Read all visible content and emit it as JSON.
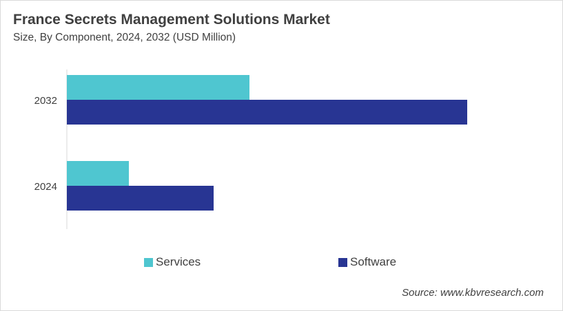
{
  "chart_data": {
    "type": "bar",
    "orientation": "horizontal",
    "title": "France Secrets Management Solutions Market",
    "subtitle": "Size, By Component, 2024, 2032 (USD Million)",
    "categories": [
      "2032",
      "2024"
    ],
    "series": [
      {
        "name": "Services",
        "color": "#4FC6D0",
        "values": [
          265,
          90
        ]
      },
      {
        "name": "Software",
        "color": "#283593",
        "values": [
          581,
          213
        ]
      }
    ],
    "value_note_hidden": null,
    "xlim": [
      0,
      650
    ],
    "grid": false,
    "legend_position": "bottom",
    "source": "Source: www.kbvresearch.com"
  }
}
